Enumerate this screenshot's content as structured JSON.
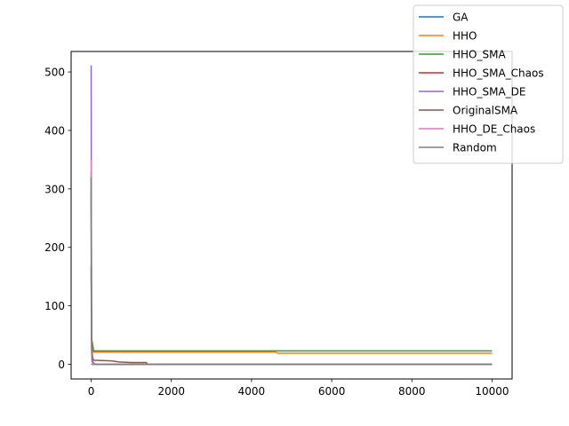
{
  "chart_data": {
    "type": "line",
    "title": "",
    "xlabel": "",
    "ylabel": "",
    "xlim": [
      -500,
      10500
    ],
    "ylim": [
      -25,
      535
    ],
    "x_ticks": [
      0,
      2000,
      4000,
      6000,
      8000,
      10000
    ],
    "x_tick_labels": [
      "0",
      "2000",
      "4000",
      "6000",
      "8000",
      "10000"
    ],
    "y_ticks": [
      0,
      100,
      200,
      300,
      400,
      500
    ],
    "y_tick_labels": [
      "0",
      "100",
      "200",
      "300",
      "400",
      "500"
    ],
    "grid": false,
    "legend_position": "upper right, outside axes",
    "series": [
      {
        "name": "GA",
        "color": "#1f77b4",
        "x": [
          0,
          10000
        ],
        "y": [
          0,
          0
        ]
      },
      {
        "name": "HHO",
        "color": "#ff7f0e",
        "x": [
          0,
          10,
          60,
          4600,
          4650,
          10000
        ],
        "y": [
          160,
          40,
          21,
          21,
          19,
          19
        ]
      },
      {
        "name": "HHO_SMA",
        "color": "#2ca02c",
        "x": [
          0,
          10,
          60,
          10000
        ],
        "y": [
          170,
          45,
          23,
          23
        ]
      },
      {
        "name": "HHO_SMA_Chaos",
        "color": "#d62728",
        "x": [
          0,
          10,
          50,
          10000
        ],
        "y": [
          300,
          30,
          0,
          0
        ]
      },
      {
        "name": "HHO_SMA_DE",
        "color": "#9467bd",
        "x": [
          0,
          5,
          15,
          40,
          10000
        ],
        "y": [
          511,
          250,
          30,
          0,
          0
        ]
      },
      {
        "name": "OriginalSMA",
        "color": "#8c564b",
        "x": [
          0,
          5,
          20,
          60,
          500,
          700,
          1000,
          1380,
          1400,
          10000
        ],
        "y": [
          330,
          100,
          15,
          7,
          6,
          4,
          3,
          3,
          0,
          0
        ]
      },
      {
        "name": "HHO_DE_Chaos",
        "color": "#e377c2",
        "x": [
          0,
          10,
          40,
          10000
        ],
        "y": [
          350,
          20,
          0,
          0
        ]
      },
      {
        "name": "Random",
        "color": "#7f7f7f",
        "x": [
          0,
          5,
          20,
          100,
          10000
        ],
        "y": [
          320,
          80,
          5,
          0,
          0
        ]
      }
    ]
  }
}
